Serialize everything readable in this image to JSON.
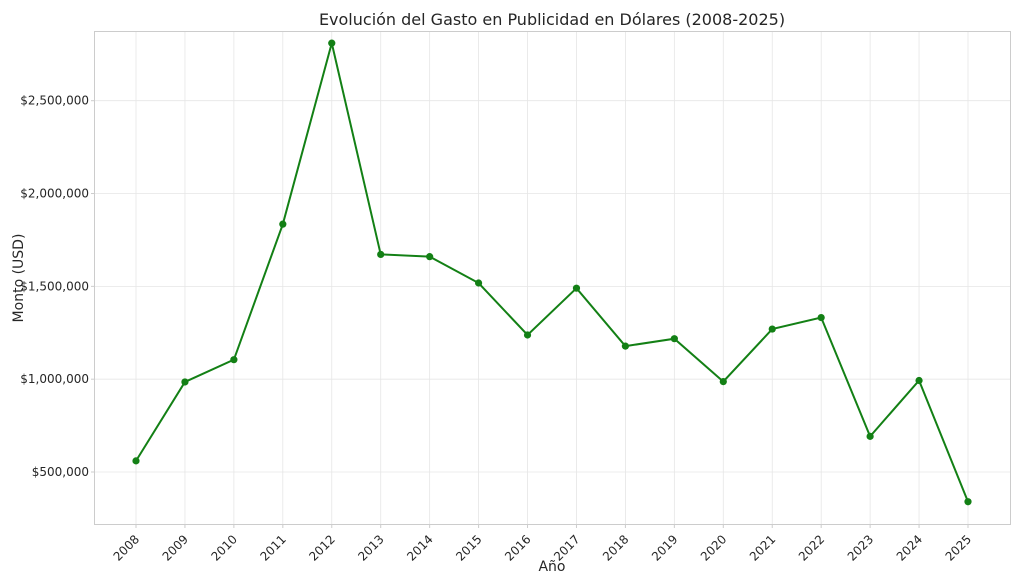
{
  "chart_data": {
    "type": "line",
    "title": "Evolución del Gasto en Publicidad en Dólares (2008-2025)",
    "xlabel": "Año",
    "ylabel": "Monto (USD)",
    "categories": [
      "2008",
      "2009",
      "2010",
      "2011",
      "2012",
      "2013",
      "2014",
      "2015",
      "2016",
      "2017",
      "2018",
      "2019",
      "2020",
      "2021",
      "2022",
      "2023",
      "2024",
      "2025"
    ],
    "series": [
      {
        "values": [
          560000,
          985000,
          1105000,
          1835000,
          2810000,
          1672000,
          1660000,
          1518000,
          1238000,
          1490000,
          1178000,
          1218000,
          987000,
          1270000,
          1332000,
          692000,
          993000,
          340000
        ],
        "color": "#138015"
      }
    ],
    "ylim": [
      220000,
      2870000
    ],
    "y_ticks": [
      500000,
      1000000,
      1500000,
      2000000,
      2500000
    ],
    "y_tick_labels": [
      "$500,000",
      "$1,000,000",
      "$1,500,000",
      "$2,000,000",
      "$2,500,000"
    ],
    "grid": true,
    "markers": true
  }
}
